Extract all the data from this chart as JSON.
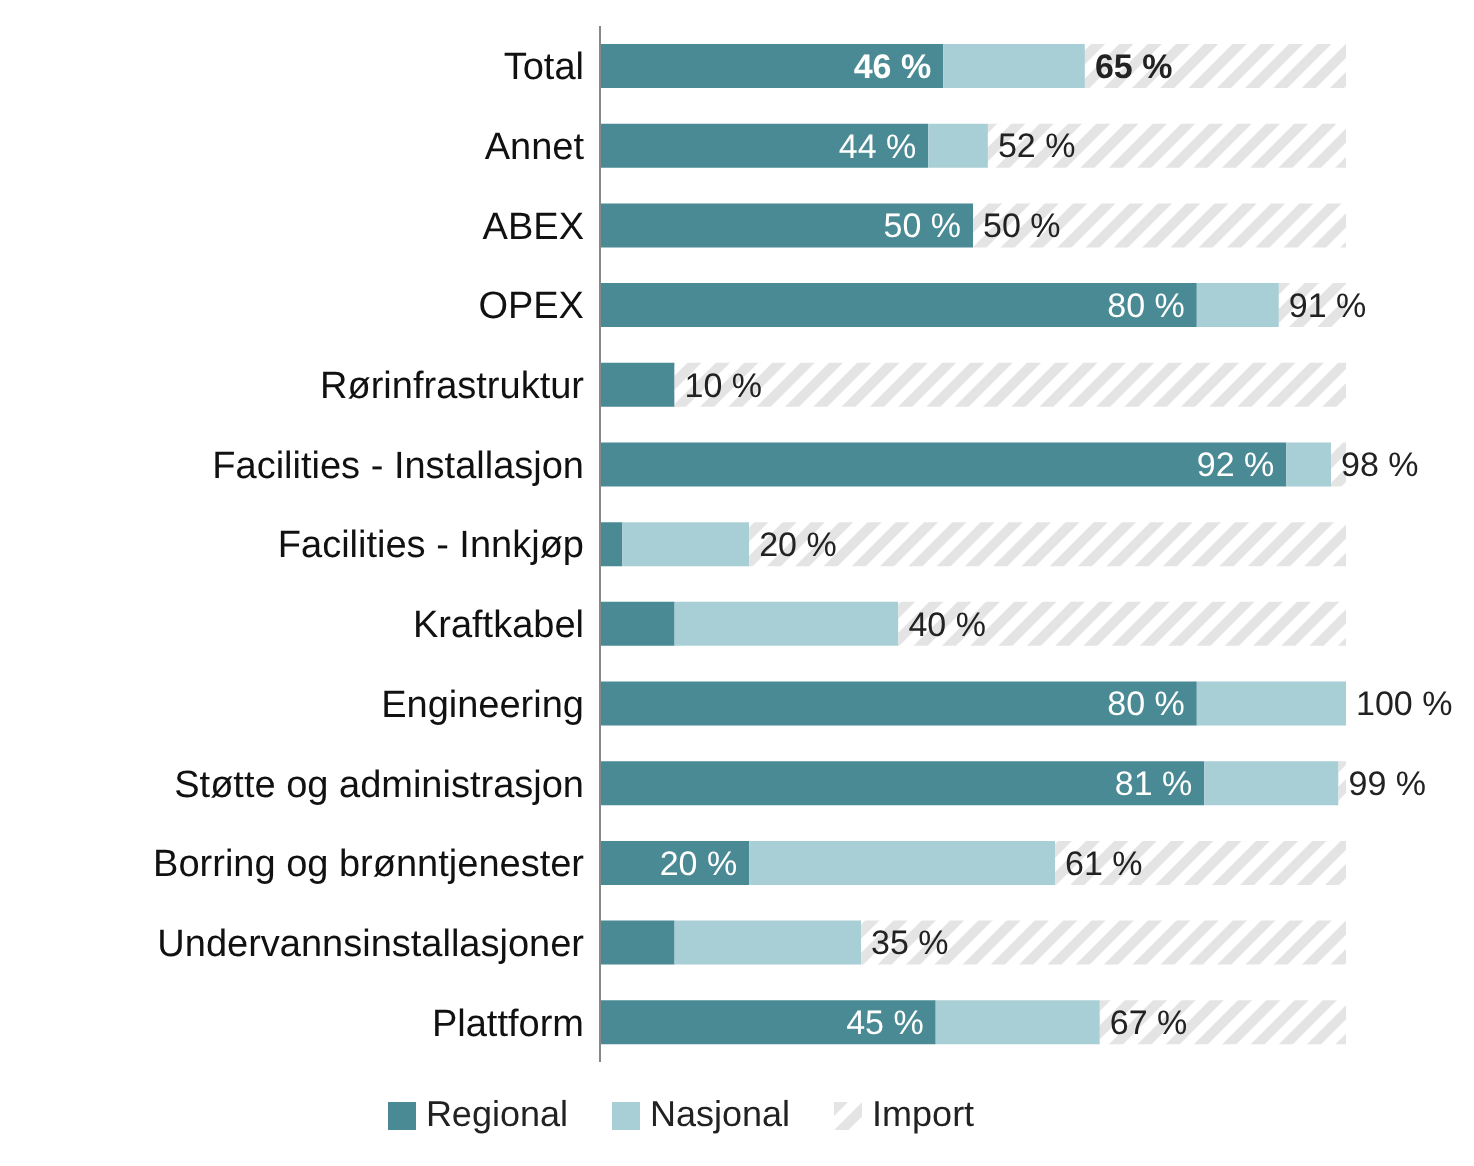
{
  "chart_data": {
    "type": "bar",
    "orientation": "horizontal",
    "stacked": true,
    "categories": [
      "Total",
      "Annet",
      "ABEX",
      "OPEX",
      "Rørinfrastruktur",
      "Facilities - Installasjon",
      "Facilities - Innkjøp",
      "Kraftkabel",
      "Engineering",
      "Støtte og administrasjon",
      "Borring og brønntjenester",
      "Undervannsinstallasjoner",
      "Plattform"
    ],
    "series": [
      {
        "name": "Regional",
        "color": "#4a8a94",
        "values": [
          46,
          44,
          50,
          80,
          10,
          92,
          3,
          10,
          80,
          81,
          20,
          10,
          45
        ],
        "value_labels": [
          "46 %",
          "44 %",
          "50 %",
          "80 %",
          null,
          "92 %",
          null,
          null,
          "80 %",
          "81 %",
          "20 %",
          null,
          "45 %"
        ]
      },
      {
        "name": "Nasjonal",
        "color": "#a8cfd6",
        "values": [
          19,
          8,
          0,
          11,
          0,
          6,
          17,
          30,
          20,
          18,
          41,
          25,
          22
        ]
      },
      {
        "name": "Import",
        "color": "#e4e4e4",
        "values": [
          35,
          48,
          50,
          9,
          90,
          2,
          80,
          60,
          0,
          1,
          39,
          65,
          33
        ]
      }
    ],
    "annotations": [
      {
        "text": "65 %",
        "x": 65,
        "y": "Total"
      },
      {
        "text": "52 %",
        "x": 52,
        "y": "Annet"
      },
      {
        "text": "50 %",
        "x": 50,
        "y": "ABEX"
      },
      {
        "text": "91 %",
        "x": 91,
        "y": "OPEX"
      },
      {
        "text": "10 %",
        "x": 10,
        "y": "Rørinfrastruktur"
      },
      {
        "text": "98 %",
        "x": 98,
        "y": "Facilities - Installasjon"
      },
      {
        "text": "20 %",
        "x": 20,
        "y": "Facilities - Innkjøp"
      },
      {
        "text": "40 %",
        "x": 40,
        "y": "Kraftkabel"
      },
      {
        "text": "100 %",
        "x": 100,
        "y": "Engineering"
      },
      {
        "text": "99 %",
        "x": 99,
        "y": "Støtte og administrasjon"
      },
      {
        "text": "61 %",
        "x": 61,
        "y": "Borring og brønntjenester"
      },
      {
        "text": "35 %",
        "x": 35,
        "y": "Undervannsinstallasjoner"
      },
      {
        "text": "67 %",
        "x": 67,
        "y": "Plattform"
      }
    ],
    "xlim": [
      0,
      100
    ],
    "tick_labels": "y",
    "legend": "bottom"
  }
}
